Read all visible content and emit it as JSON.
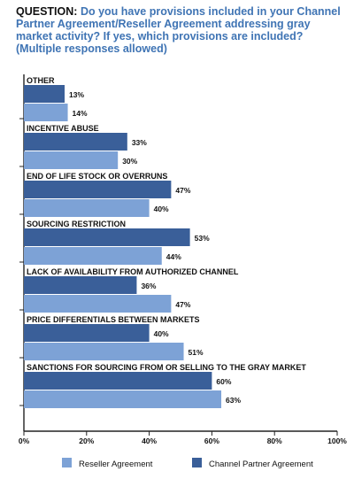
{
  "header": {
    "label": "QUESTION:",
    "question": "Do you have provisions included in your Channel Partner Agreement/Reseller Agreement addressing gray market activity? If yes, which provisions are included?",
    "note": "(Multiple responses allowed)"
  },
  "colors": {
    "channel": "#3a5f99",
    "reseller": "#7da2d6",
    "text": "#111111",
    "accent": "#3f74b4"
  },
  "chart_data": {
    "type": "bar",
    "orientation": "horizontal",
    "categories": [
      "OTHER",
      "INCENTIVE ABUSE",
      "END OF LIFE STOCK OR OVERRUNS",
      "SOURCING RESTRICTION",
      "LACK OF AVAILABILITY FROM AUTHORIZED CHANNEL",
      "PRICE DIFFERENTIALS BETWEEN MARKETS",
      "SANCTIONS FOR SOURCING FROM OR SELLING TO THE GRAY MARKET"
    ],
    "series": [
      {
        "name": "Channel Partner Agreement",
        "values": [
          13,
          33,
          47,
          53,
          36,
          40,
          60
        ]
      },
      {
        "name": "Reseller Agreement",
        "values": [
          14,
          30,
          40,
          44,
          47,
          51,
          63
        ]
      }
    ],
    "value_labels": {
      "channel": [
        "13%",
        "33%",
        "47%",
        "53%",
        "36%",
        "40%",
        "60%"
      ],
      "reseller": [
        "14%",
        "30%",
        "40%",
        "44%",
        "47%",
        "51%",
        "63%"
      ]
    },
    "xlim": [
      0,
      100
    ],
    "xticks": [
      "0%",
      "20%",
      "40%",
      "60%",
      "80%",
      "100%"
    ],
    "legend_position": "bottom",
    "legend": [
      "Reseller Agreement",
      "Channel Partner Agreement"
    ]
  }
}
